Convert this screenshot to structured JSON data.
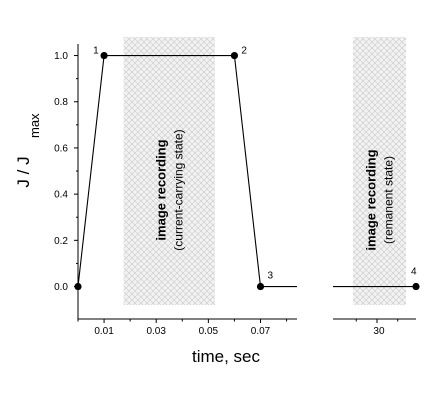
{
  "chart_data": {
    "type": "line",
    "xlabel": "time, sec",
    "ylabel_main": "J / J",
    "ylabel_sub": "max",
    "panel_left": {
      "xlim": [
        0,
        0.084
      ],
      "x_ticks": [
        0.01,
        0.03,
        0.05,
        0.07
      ],
      "x_tick_labels": [
        "0.01",
        "0.03",
        "0.05",
        "0.07"
      ],
      "x_minor_ticks": [
        0,
        0.02,
        0.04,
        0.06,
        0.08
      ]
    },
    "panel_right": {
      "xlim": [
        0,
        1
      ],
      "x_ticks": [
        0.53
      ],
      "x_tick_labels": [
        "30"
      ],
      "x_minor_ticks": [
        0.28,
        0.78
      ]
    },
    "ylim": [
      -0.08,
      1.05
    ],
    "y_ticks": [
      0.0,
      0.2,
      0.4,
      0.6,
      0.8,
      1.0
    ],
    "y_tick_labels": [
      "0.0",
      "0.2",
      "0.4",
      "0.6",
      "0.8",
      "1.0"
    ],
    "series": [
      {
        "points_left": [
          {
            "x": 0.0,
            "y": 0.0
          },
          {
            "x": 0.01,
            "y": 1.0
          },
          {
            "x": 0.06,
            "y": 1.0
          },
          {
            "x": 0.07,
            "y": 0.0
          },
          {
            "x": 0.084,
            "y": 0.0
          }
        ],
        "points_right": [
          {
            "x": 0.0,
            "y": 0.0
          },
          {
            "x": 1.0,
            "y": 0.0
          }
        ]
      }
    ],
    "markers": [
      {
        "label": "1",
        "panel": "left",
        "x": 0.01,
        "y": 1.0
      },
      {
        "label": "2",
        "panel": "left",
        "x": 0.06,
        "y": 1.0
      },
      {
        "label": "3",
        "panel": "left",
        "x": 0.07,
        "y": 0.0
      },
      {
        "label": "4",
        "panel": "right",
        "x": 1.0,
        "y": 0.0
      }
    ],
    "origin_marker": {
      "panel": "left",
      "x": 0.0,
      "y": 0.0
    },
    "shaded_regions": [
      {
        "panel": "left",
        "x0": 0.0175,
        "x1": 0.0525,
        "title": "image recording",
        "subtitle": "(current-carrying state)"
      },
      {
        "panel": "right",
        "x0": 0.24,
        "x1": 0.88,
        "title": "image recording",
        "subtitle": "(remanent state)"
      }
    ],
    "grid": false,
    "legend": "none"
  }
}
